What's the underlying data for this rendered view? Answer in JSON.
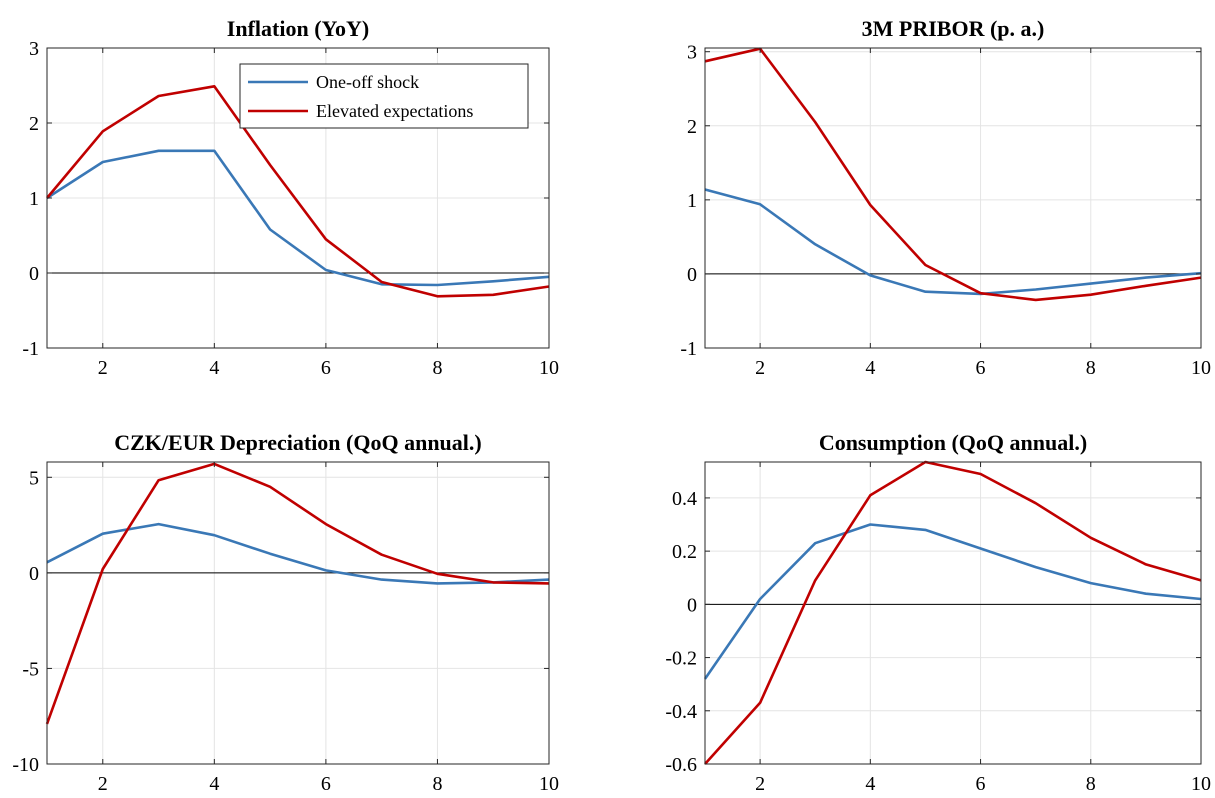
{
  "colors": {
    "one_off": "#3a78b6",
    "elevated": "#c00000",
    "grid": "#e4e4e4",
    "zero": "#000000"
  },
  "legend": {
    "placement": "top-right of first panel",
    "one_off_label": "One-off shock",
    "elevated_label": "Elevated expectations"
  },
  "chart_data": [
    {
      "type": "line",
      "title": "Inflation (YoY)",
      "xlabel": "",
      "ylabel": "",
      "xlim": [
        1,
        10
      ],
      "ylim": [
        -1,
        3
      ],
      "x_ticks": [
        2,
        4,
        6,
        8,
        10
      ],
      "y_ticks": [
        -1,
        0,
        1,
        2,
        3
      ],
      "grid": true,
      "x": [
        1,
        2,
        3,
        4,
        5,
        6,
        7,
        8,
        9,
        10
      ],
      "series": [
        {
          "name": "One-off shock",
          "values": [
            1.0,
            1.48,
            1.63,
            1.63,
            0.58,
            0.04,
            -0.15,
            -0.16,
            -0.11,
            -0.05
          ]
        },
        {
          "name": "Elevated expectations",
          "values": [
            1.0,
            1.89,
            2.36,
            2.49,
            1.44,
            0.45,
            -0.12,
            -0.31,
            -0.29,
            -0.18
          ]
        }
      ]
    },
    {
      "type": "line",
      "title": "3M PRIBOR (p. a.)",
      "xlabel": "",
      "ylabel": "",
      "xlim": [
        1,
        10
      ],
      "ylim": [
        -1,
        3.05
      ],
      "x_ticks": [
        2,
        4,
        6,
        8,
        10
      ],
      "y_ticks": [
        -1,
        0,
        1,
        2,
        3
      ],
      "grid": true,
      "x": [
        1,
        2,
        3,
        4,
        5,
        6,
        7,
        8,
        9,
        10
      ],
      "series": [
        {
          "name": "One-off shock",
          "values": [
            1.14,
            0.94,
            0.4,
            -0.02,
            -0.24,
            -0.27,
            -0.21,
            -0.13,
            -0.05,
            0.01
          ]
        },
        {
          "name": "Elevated expectations",
          "values": [
            2.87,
            3.04,
            2.05,
            0.93,
            0.12,
            -0.26,
            -0.35,
            -0.28,
            -0.16,
            -0.05
          ]
        }
      ]
    },
    {
      "type": "line",
      "title": "CZK/EUR Depreciation (QoQ annual.)",
      "xlabel": "",
      "ylabel": "",
      "xlim": [
        1,
        10
      ],
      "ylim": [
        -10,
        5.8
      ],
      "x_ticks": [
        2,
        4,
        6,
        8,
        10
      ],
      "y_ticks": [
        -10,
        -5,
        0,
        5
      ],
      "grid": true,
      "x": [
        1,
        2,
        3,
        4,
        5,
        6,
        7,
        8,
        9,
        10
      ],
      "series": [
        {
          "name": "One-off shock",
          "values": [
            0.55,
            2.05,
            2.55,
            1.97,
            1.0,
            0.13,
            -0.35,
            -0.55,
            -0.5,
            -0.35
          ]
        },
        {
          "name": "Elevated expectations",
          "values": [
            -7.9,
            0.2,
            4.85,
            5.7,
            4.5,
            2.55,
            0.95,
            -0.05,
            -0.5,
            -0.55
          ]
        }
      ]
    },
    {
      "type": "line",
      "title": "Consumption (QoQ annual.)",
      "xlabel": "",
      "ylabel": "",
      "xlim": [
        1,
        10
      ],
      "ylim": [
        -0.6,
        0.535
      ],
      "x_ticks": [
        2,
        4,
        6,
        8,
        10
      ],
      "y_ticks": [
        -0.6,
        -0.4,
        -0.2,
        0,
        0.2,
        0.4
      ],
      "grid": true,
      "x": [
        1,
        2,
        3,
        4,
        5,
        6,
        7,
        8,
        9,
        10
      ],
      "series": [
        {
          "name": "One-off shock",
          "values": [
            -0.28,
            0.02,
            0.23,
            0.3,
            0.28,
            0.21,
            0.14,
            0.08,
            0.04,
            0.02
          ]
        },
        {
          "name": "Elevated expectations",
          "values": [
            -0.6,
            -0.37,
            0.09,
            0.41,
            0.535,
            0.49,
            0.38,
            0.25,
            0.15,
            0.09
          ]
        }
      ]
    }
  ]
}
